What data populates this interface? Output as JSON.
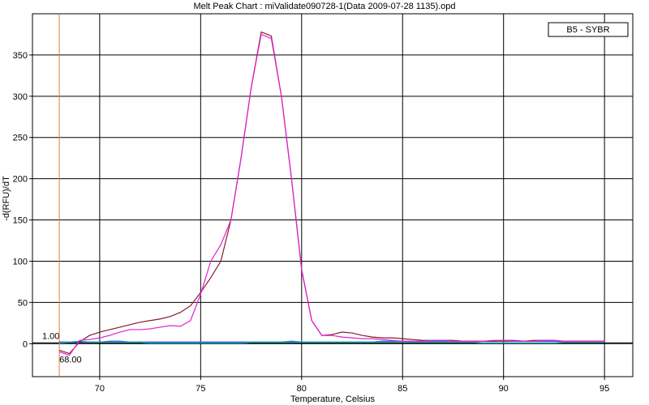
{
  "chart_data": {
    "type": "line",
    "title": "Melt Peak Chart : miValidate090728-1(Data 2009-07-28 1135).opd",
    "xlabel": "Temperature, Celsius",
    "ylabel": "-d(RFU)/dT",
    "legend": "B5 - SYBR",
    "x": [
      68,
      68.5,
      69,
      69.5,
      70,
      70.5,
      71,
      71.5,
      72,
      72.5,
      73,
      73.5,
      74,
      74.5,
      75,
      75.5,
      76,
      76.5,
      77,
      77.5,
      78,
      78.5,
      79,
      79.5,
      80,
      80.5,
      81,
      81.5,
      82,
      82.5,
      83,
      83.5,
      84,
      84.5,
      85,
      85.5,
      86,
      86.5,
      87,
      87.5,
      88,
      88.5,
      89,
      89.5,
      90,
      90.5,
      91,
      91.5,
      92,
      92.5,
      93,
      93.5,
      94,
      94.5,
      95
    ],
    "series": [
      {
        "color": "#8b1a2a",
        "values": [
          -8,
          -12,
          2,
          10,
          14,
          17,
          20,
          23,
          26,
          28,
          30,
          33,
          38,
          46,
          62,
          80,
          100,
          150,
          225,
          310,
          378,
          373,
          300,
          200,
          90,
          28,
          10,
          11,
          14,
          13,
          10,
          8,
          7,
          7,
          6,
          5,
          4,
          4,
          4,
          4,
          3,
          3,
          3,
          3,
          3,
          3,
          3,
          4,
          4,
          4,
          3,
          3,
          3,
          3,
          3
        ]
      },
      {
        "color": "#e020d0",
        "values": [
          -10,
          -14,
          4,
          5,
          7,
          10,
          14,
          17,
          17,
          18,
          20,
          22,
          21,
          28,
          60,
          100,
          120,
          150,
          225,
          310,
          375,
          370,
          300,
          200,
          90,
          28,
          10,
          10,
          8,
          7,
          6,
          6,
          5,
          4,
          3,
          3,
          3,
          4,
          4,
          3,
          3,
          3,
          3,
          4,
          4,
          3,
          3,
          3,
          4,
          4,
          3,
          3,
          3,
          3,
          3
        ]
      },
      {
        "color": "#3040e0",
        "values": [
          2,
          2,
          2,
          2,
          2,
          3,
          3,
          2,
          2,
          2,
          2,
          2,
          2,
          2,
          2,
          2,
          2,
          2,
          2,
          2,
          2,
          2,
          2,
          3,
          2,
          2,
          2,
          2,
          2,
          2,
          2,
          2,
          3,
          3,
          3,
          3,
          3,
          3,
          3,
          3,
          3,
          3,
          3,
          3,
          4,
          4,
          3,
          3,
          3,
          3,
          3,
          3,
          3,
          3,
          3
        ]
      },
      {
        "color": "#00b8c8",
        "values": [
          1,
          2,
          3,
          2,
          2,
          2,
          2,
          2,
          2,
          1,
          1,
          1,
          1,
          1,
          1,
          1,
          1,
          1,
          1,
          2,
          2,
          2,
          2,
          2,
          2,
          2,
          2,
          2,
          2,
          2,
          2,
          2,
          2,
          2,
          2,
          2,
          2,
          2,
          2,
          2,
          2,
          2,
          1,
          1,
          1,
          1,
          1,
          1,
          1,
          1,
          2,
          2,
          2,
          2,
          2
        ]
      }
    ],
    "threshold": {
      "value": 1,
      "label": "1.00"
    },
    "cursor": {
      "value": 68,
      "label": "68.00",
      "color": "#e08040"
    },
    "xlim": [
      66.67,
      96.4
    ],
    "ylim": [
      -40,
      400
    ],
    "xticks": [
      70,
      75,
      80,
      85,
      90,
      95
    ],
    "yticks": [
      0,
      50,
      100,
      150,
      200,
      250,
      300,
      350
    ],
    "grid": true
  }
}
